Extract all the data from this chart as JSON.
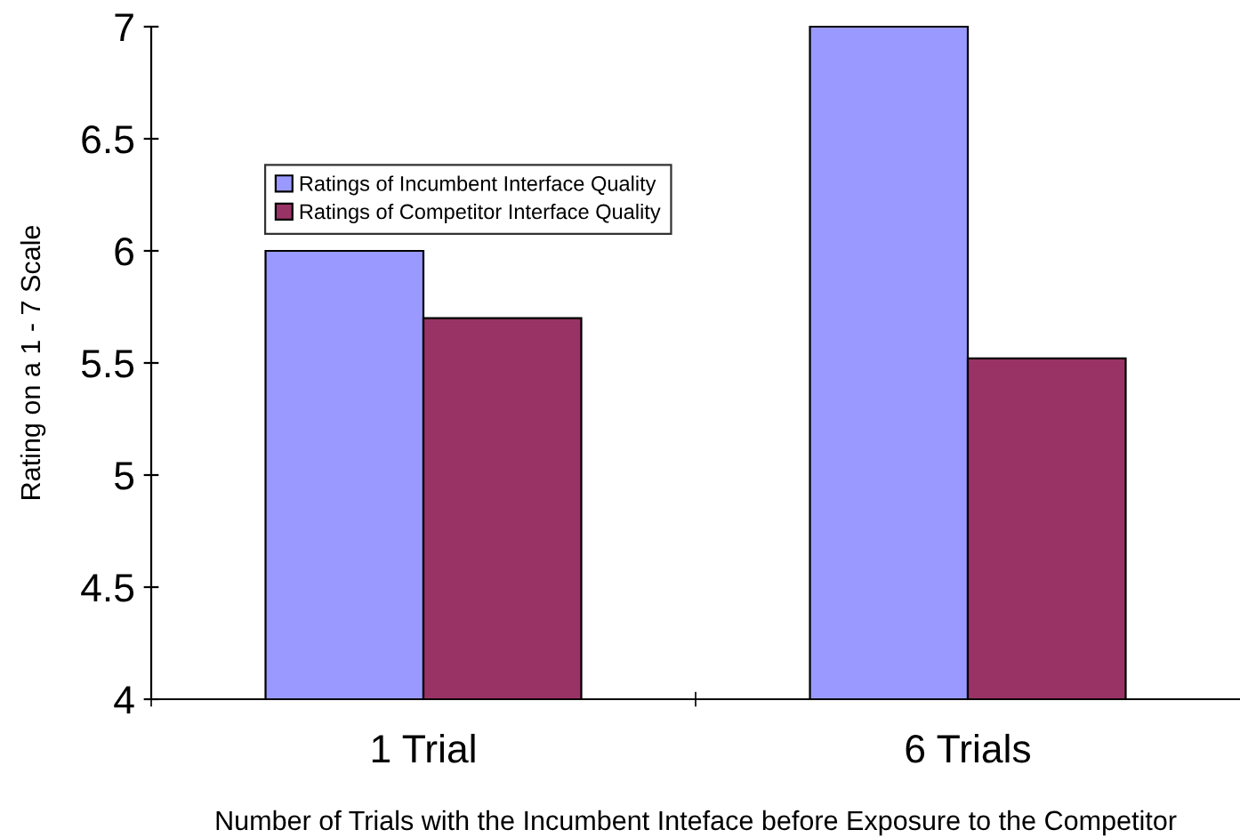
{
  "chart_data": {
    "type": "bar",
    "xlabel": "Number of Trials with the Incumbent Inteface before Exposure to the Competitor",
    "ylabel": "Rating on a 1 - 7 Scale",
    "categories": [
      "1 Trial",
      "6 Trials"
    ],
    "series": [
      {
        "name": "Ratings of Incumbent Interface Quality",
        "color": "#9999ff",
        "values": [
          6.0,
          7.0
        ]
      },
      {
        "name": "Ratings of Competitor Interface Quality",
        "color": "#993366",
        "values": [
          5.7,
          5.52
        ]
      }
    ],
    "ylim": [
      4,
      7
    ],
    "yticks": [
      4,
      4.5,
      5,
      5.5,
      6,
      6.5,
      7
    ],
    "grid": false,
    "legend": "top left"
  }
}
